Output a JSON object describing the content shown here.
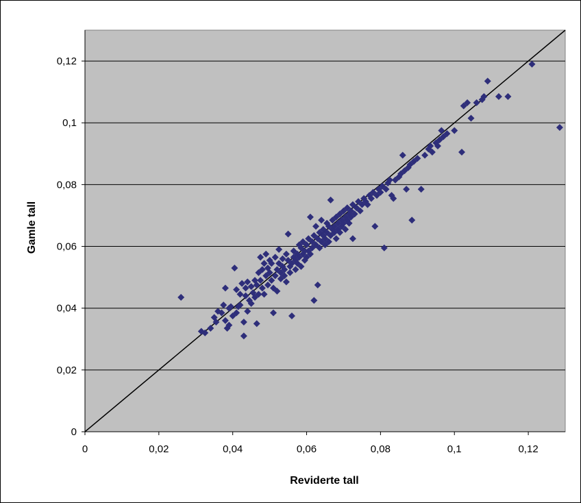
{
  "chart_data": {
    "type": "scatter",
    "xlabel": "Reviderte tall",
    "ylabel": "Gamle tall",
    "xlim": [
      0,
      0.13
    ],
    "ylim": [
      0,
      0.13
    ],
    "x_ticks": [
      0,
      0.02,
      0.04,
      0.06,
      0.08,
      0.1,
      0.12
    ],
    "y_ticks": [
      0,
      0.02,
      0.04,
      0.06,
      0.08,
      0.1,
      0.12
    ],
    "x_tick_labels": [
      "0",
      "0,02",
      "0,04",
      "0,06",
      "0,08",
      "0,1",
      "0,12"
    ],
    "y_tick_labels": [
      "0",
      "0,02",
      "0,04",
      "0,06",
      "0,08",
      "0,1",
      "0,12"
    ],
    "grid": "horizontal",
    "reference_line": {
      "from": [
        0,
        0
      ],
      "to": [
        0.13,
        0.13
      ]
    },
    "colors": {
      "plot_background": "#c0c0c0",
      "marker": "#2e2e7a",
      "line": "#000000",
      "grid": "#000000"
    },
    "series": [
      {
        "marker": "diamond",
        "points": [
          [
            0.026,
            0.0435
          ],
          [
            0.0315,
            0.0325
          ],
          [
            0.0325,
            0.032
          ],
          [
            0.034,
            0.0335
          ],
          [
            0.035,
            0.037
          ],
          [
            0.0355,
            0.0355
          ],
          [
            0.036,
            0.039
          ],
          [
            0.037,
            0.0385
          ],
          [
            0.0375,
            0.041
          ],
          [
            0.038,
            0.0465
          ],
          [
            0.038,
            0.036
          ],
          [
            0.0385,
            0.0335
          ],
          [
            0.039,
            0.0345
          ],
          [
            0.039,
            0.04
          ],
          [
            0.0395,
            0.0405
          ],
          [
            0.04,
            0.0375
          ],
          [
            0.0405,
            0.053
          ],
          [
            0.041,
            0.046
          ],
          [
            0.041,
            0.0385
          ],
          [
            0.0415,
            0.0405
          ],
          [
            0.042,
            0.0445
          ],
          [
            0.042,
            0.041
          ],
          [
            0.0425,
            0.048
          ],
          [
            0.043,
            0.031
          ],
          [
            0.043,
            0.0355
          ],
          [
            0.0435,
            0.044
          ],
          [
            0.0435,
            0.0465
          ],
          [
            0.044,
            0.039
          ],
          [
            0.044,
            0.0485
          ],
          [
            0.0445,
            0.0425
          ],
          [
            0.045,
            0.0415
          ],
          [
            0.045,
            0.047
          ],
          [
            0.0455,
            0.045
          ],
          [
            0.046,
            0.049
          ],
          [
            0.046,
            0.0435
          ],
          [
            0.0465,
            0.035
          ],
          [
            0.0465,
            0.0475
          ],
          [
            0.047,
            0.0445
          ],
          [
            0.047,
            0.0515
          ],
          [
            0.0475,
            0.0565
          ],
          [
            0.0475,
            0.049
          ],
          [
            0.048,
            0.0465
          ],
          [
            0.048,
            0.0525
          ],
          [
            0.0485,
            0.0545
          ],
          [
            0.0485,
            0.0445
          ],
          [
            0.049,
            0.0505
          ],
          [
            0.049,
            0.0575
          ],
          [
            0.0495,
            0.0475
          ],
          [
            0.0495,
            0.053
          ],
          [
            0.05,
            0.0555
          ],
          [
            0.05,
            0.0515
          ],
          [
            0.0505,
            0.049
          ],
          [
            0.0505,
            0.0545
          ],
          [
            0.051,
            0.0465
          ],
          [
            0.051,
            0.0385
          ],
          [
            0.0515,
            0.0505
          ],
          [
            0.0515,
            0.0565
          ],
          [
            0.052,
            0.0525
          ],
          [
            0.052,
            0.0455
          ],
          [
            0.0525,
            0.0545
          ],
          [
            0.0525,
            0.059
          ],
          [
            0.053,
            0.0515
          ],
          [
            0.053,
            0.0495
          ],
          [
            0.0535,
            0.0535
          ],
          [
            0.0535,
            0.056
          ],
          [
            0.054,
            0.0505
          ],
          [
            0.054,
            0.0525
          ],
          [
            0.0545,
            0.0575
          ],
          [
            0.0545,
            0.0485
          ],
          [
            0.055,
            0.0555
          ],
          [
            0.055,
            0.064
          ],
          [
            0.0555,
            0.0535
          ],
          [
            0.0555,
            0.0515
          ],
          [
            0.056,
            0.0545
          ],
          [
            0.056,
            0.0375
          ],
          [
            0.0565,
            0.0585
          ],
          [
            0.0565,
            0.0565
          ],
          [
            0.057,
            0.0555
          ],
          [
            0.057,
            0.0525
          ],
          [
            0.0575,
            0.0575
          ],
          [
            0.0575,
            0.0545
          ],
          [
            0.058,
            0.0605
          ],
          [
            0.058,
            0.0565
          ],
          [
            0.0585,
            0.0595
          ],
          [
            0.0585,
            0.0535
          ],
          [
            0.059,
            0.0575
          ],
          [
            0.059,
            0.0615
          ],
          [
            0.0595,
            0.0585
          ],
          [
            0.0595,
            0.0555
          ],
          [
            0.06,
            0.0605
          ],
          [
            0.06,
            0.0565
          ],
          [
            0.0605,
            0.0625
          ],
          [
            0.0605,
            0.0585
          ],
          [
            0.061,
            0.0695
          ],
          [
            0.061,
            0.0575
          ],
          [
            0.0615,
            0.0615
          ],
          [
            0.0615,
            0.0595
          ],
          [
            0.062,
            0.0635
          ],
          [
            0.062,
            0.0425
          ],
          [
            0.0625,
            0.0605
          ],
          [
            0.0625,
            0.0665
          ],
          [
            0.063,
            0.0625
          ],
          [
            0.063,
            0.0475
          ],
          [
            0.0635,
            0.0645
          ],
          [
            0.0635,
            0.0595
          ],
          [
            0.064,
            0.0615
          ],
          [
            0.064,
            0.0685
          ],
          [
            0.0645,
            0.0635
          ],
          [
            0.0645,
            0.0655
          ],
          [
            0.065,
            0.0625
          ],
          [
            0.065,
            0.0605
          ],
          [
            0.0655,
            0.0645
          ],
          [
            0.0655,
            0.0675
          ],
          [
            0.066,
            0.0665
          ],
          [
            0.066,
            0.0615
          ],
          [
            0.0665,
            0.0635
          ],
          [
            0.0665,
            0.075
          ],
          [
            0.067,
            0.0655
          ],
          [
            0.067,
            0.0685
          ],
          [
            0.0675,
            0.0645
          ],
          [
            0.0675,
            0.0665
          ],
          [
            0.068,
            0.0695
          ],
          [
            0.068,
            0.0625
          ],
          [
            0.0685,
            0.0675
          ],
          [
            0.0685,
            0.0655
          ],
          [
            0.069,
            0.0705
          ],
          [
            0.069,
            0.0645
          ],
          [
            0.0695,
            0.0685
          ],
          [
            0.0695,
            0.0665
          ],
          [
            0.07,
            0.0715
          ],
          [
            0.07,
            0.0675
          ],
          [
            0.0705,
            0.0695
          ],
          [
            0.0705,
            0.0655
          ],
          [
            0.071,
            0.0725
          ],
          [
            0.071,
            0.0685
          ],
          [
            0.0715,
            0.0705
          ],
          [
            0.0715,
            0.0675
          ],
          [
            0.072,
            0.0715
          ],
          [
            0.072,
            0.0695
          ],
          [
            0.0725,
            0.0735
          ],
          [
            0.0725,
            0.0625
          ],
          [
            0.073,
            0.0705
          ],
          [
            0.0735,
            0.0725
          ],
          [
            0.074,
            0.0745
          ],
          [
            0.0745,
            0.0715
          ],
          [
            0.075,
            0.0735
          ],
          [
            0.0755,
            0.0755
          ],
          [
            0.076,
            0.0745
          ],
          [
            0.0765,
            0.0735
          ],
          [
            0.077,
            0.0765
          ],
          [
            0.0775,
            0.0755
          ],
          [
            0.078,
            0.0775
          ],
          [
            0.0785,
            0.0665
          ],
          [
            0.079,
            0.0765
          ],
          [
            0.0795,
            0.0785
          ],
          [
            0.08,
            0.0775
          ],
          [
            0.0805,
            0.0795
          ],
          [
            0.081,
            0.0595
          ],
          [
            0.0815,
            0.0785
          ],
          [
            0.082,
            0.0805
          ],
          [
            0.0825,
            0.0815
          ],
          [
            0.083,
            0.0765
          ],
          [
            0.0835,
            0.0755
          ],
          [
            0.084,
            0.0815
          ],
          [
            0.085,
            0.0825
          ],
          [
            0.0855,
            0.0835
          ],
          [
            0.086,
            0.0895
          ],
          [
            0.0865,
            0.0845
          ],
          [
            0.087,
            0.0785
          ],
          [
            0.0875,
            0.0855
          ],
          [
            0.088,
            0.0865
          ],
          [
            0.0885,
            0.0685
          ],
          [
            0.089,
            0.0875
          ],
          [
            0.09,
            0.0885
          ],
          [
            0.091,
            0.0785
          ],
          [
            0.092,
            0.0895
          ],
          [
            0.093,
            0.0915
          ],
          [
            0.0935,
            0.0925
          ],
          [
            0.094,
            0.0905
          ],
          [
            0.095,
            0.0935
          ],
          [
            0.0955,
            0.0925
          ],
          [
            0.096,
            0.0945
          ],
          [
            0.0965,
            0.0975
          ],
          [
            0.097,
            0.0955
          ],
          [
            0.098,
            0.0965
          ],
          [
            0.1,
            0.0975
          ],
          [
            0.102,
            0.0905
          ],
          [
            0.1025,
            0.1055
          ],
          [
            0.1035,
            0.1065
          ],
          [
            0.1045,
            0.1015
          ],
          [
            0.106,
            0.1065
          ],
          [
            0.1075,
            0.1075
          ],
          [
            0.108,
            0.1085
          ],
          [
            0.109,
            0.1135
          ],
          [
            0.112,
            0.1085
          ],
          [
            0.1145,
            0.1085
          ],
          [
            0.121,
            0.119
          ],
          [
            0.1285,
            0.0985
          ]
        ]
      }
    ]
  }
}
